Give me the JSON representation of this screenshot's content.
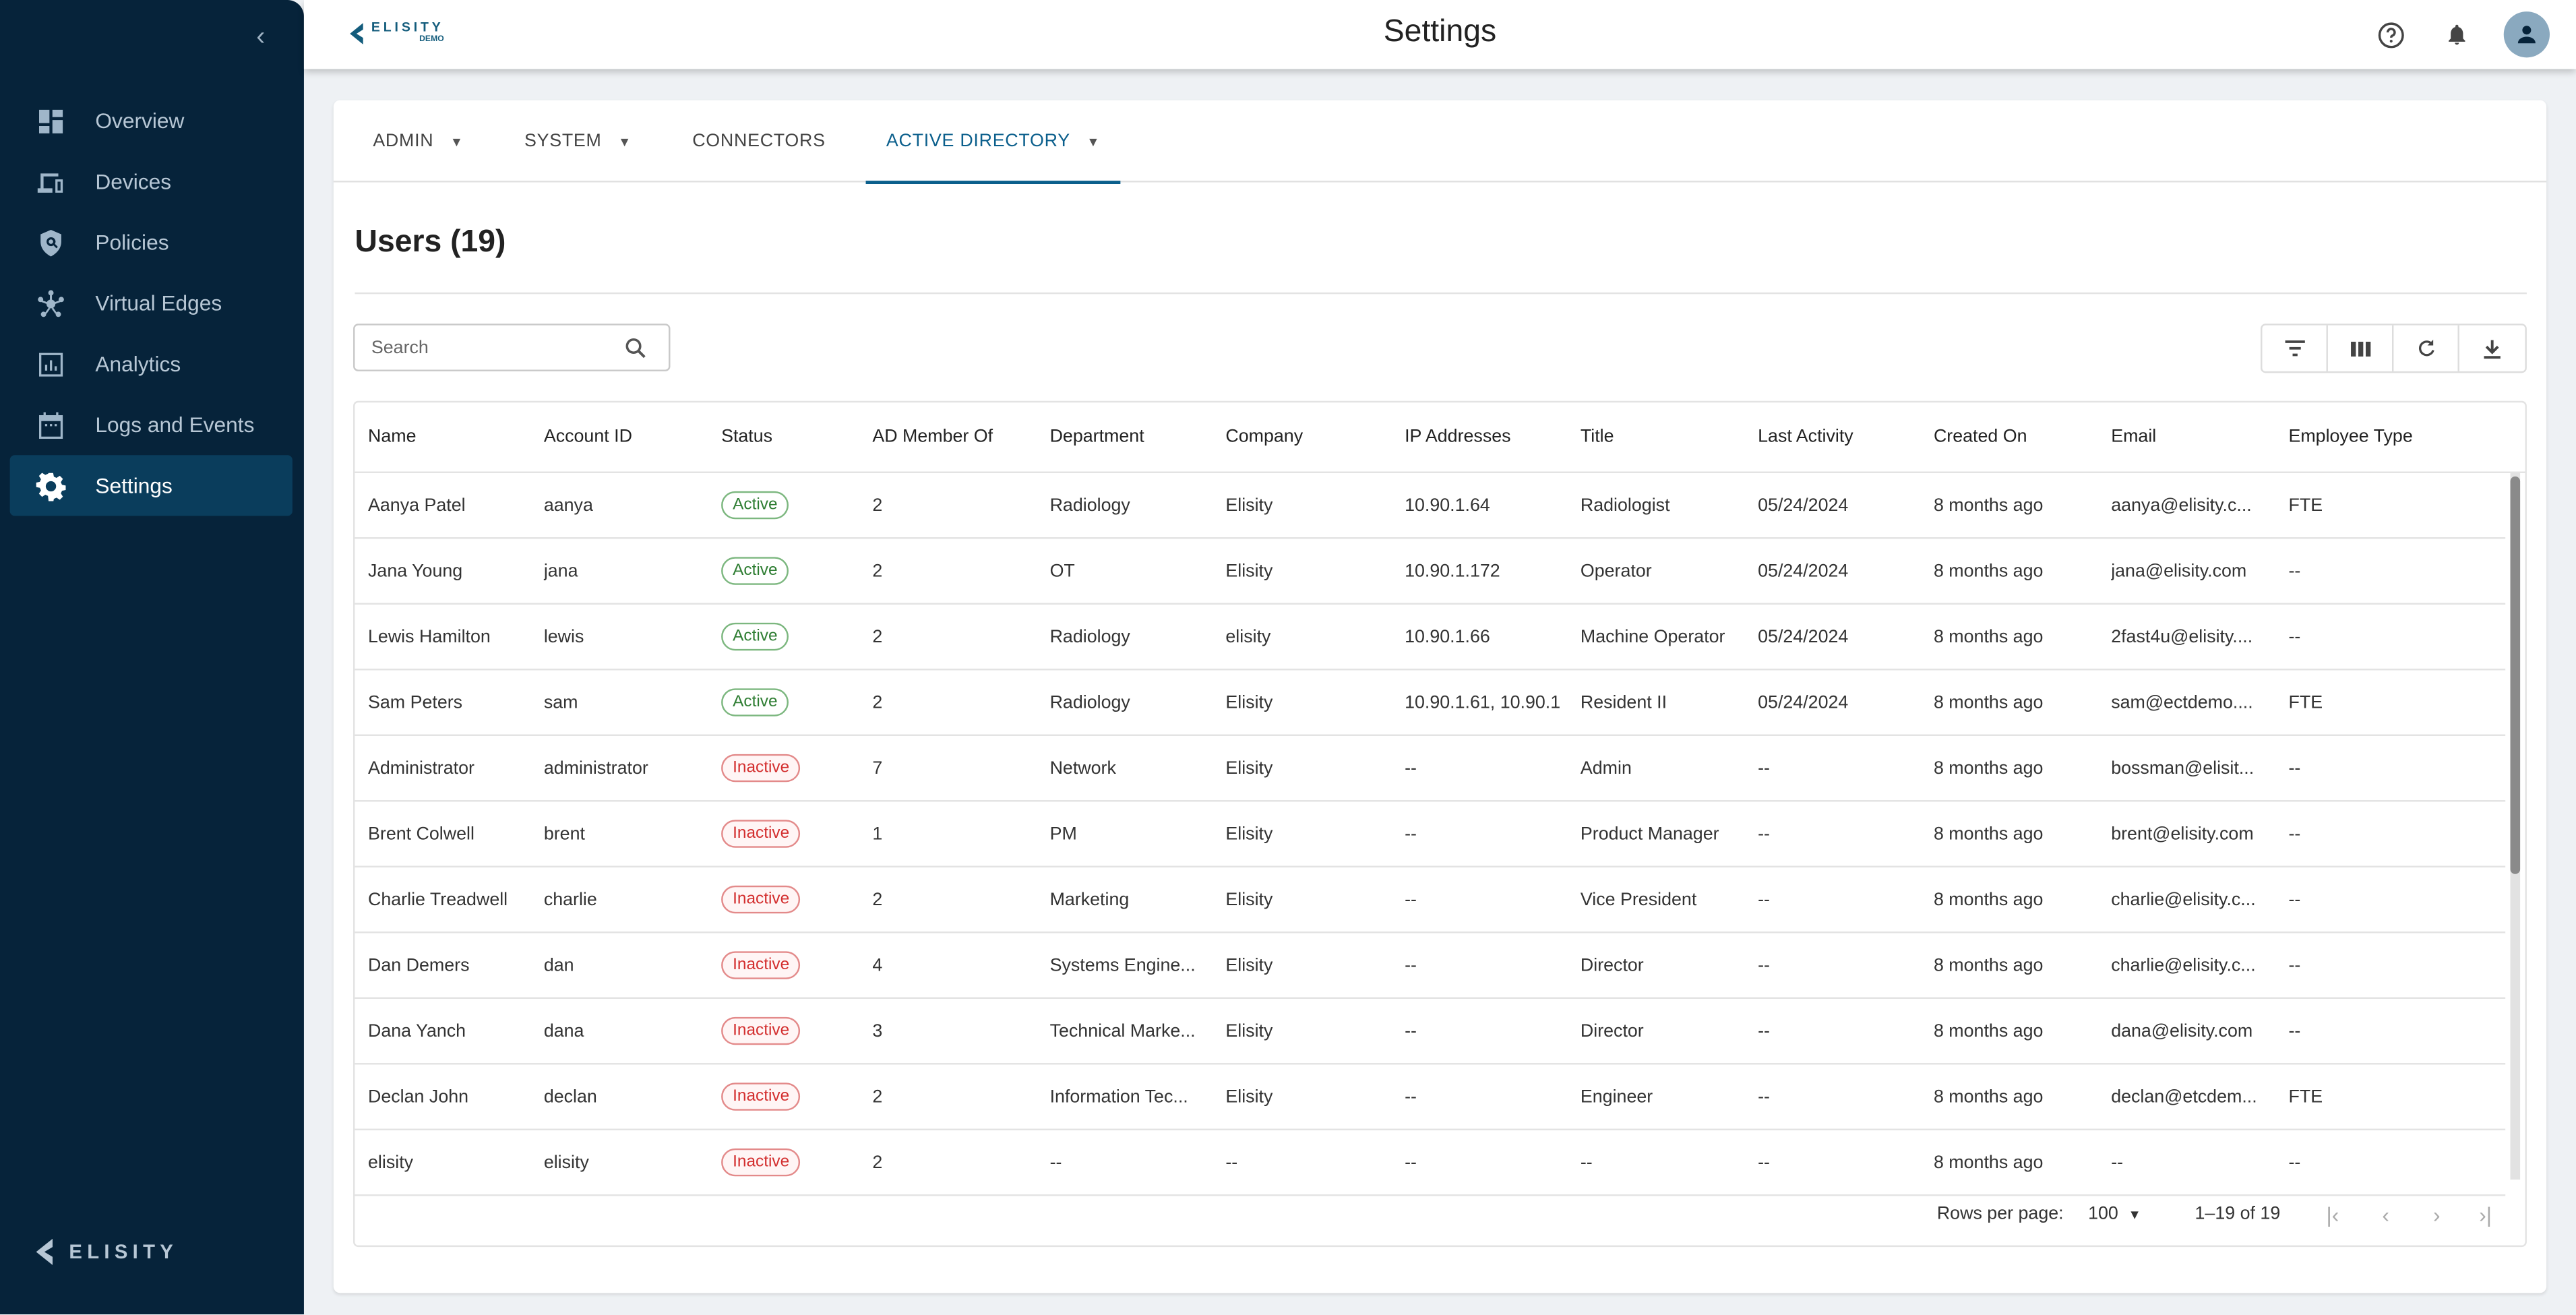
{
  "sidebar": {
    "items": [
      {
        "label": "Overview",
        "icon": "dashboard-icon"
      },
      {
        "label": "Devices",
        "icon": "devices-icon"
      },
      {
        "label": "Policies",
        "icon": "shield-icon"
      },
      {
        "label": "Virtual Edges",
        "icon": "hub-icon"
      },
      {
        "label": "Analytics",
        "icon": "analytics-icon"
      },
      {
        "label": "Logs and Events",
        "icon": "calendar-icon"
      },
      {
        "label": "Settings",
        "icon": "gear-icon",
        "active": true
      }
    ],
    "logo_text": "ELISITY"
  },
  "header": {
    "title": "Settings",
    "logo_text": "ELISITY",
    "logo_sub": "DEMO"
  },
  "tabs": [
    {
      "label": "ADMIN"
    },
    {
      "label": "SYSTEM"
    },
    {
      "label": "CONNECTORS"
    },
    {
      "label": "ACTIVE DIRECTORY",
      "active": true
    }
  ],
  "page": {
    "title": "Users (19)"
  },
  "search": {
    "placeholder": "Search",
    "value": ""
  },
  "table": {
    "columns": [
      "Name",
      "Account ID",
      "Status",
      "AD Member Of",
      "Department",
      "Company",
      "IP Addresses",
      "Title",
      "Last Activity",
      "Created On",
      "Email",
      "Employee Type"
    ],
    "rows": [
      [
        "Aanya Patel",
        "aanya",
        "Active",
        "2",
        "Radiology",
        "Elisity",
        "10.90.1.64",
        "Radiologist",
        "05/24/2024",
        "8 months ago",
        "aanya@elisity.c...",
        "FTE"
      ],
      [
        "Jana Young",
        "jana",
        "Active",
        "2",
        "OT",
        "Elisity",
        "10.90.1.172",
        "Operator",
        "05/24/2024",
        "8 months ago",
        "jana@elisity.com",
        "--"
      ],
      [
        "Lewis Hamilton",
        "lewis",
        "Active",
        "2",
        "Radiology",
        "elisity",
        "10.90.1.66",
        "Machine Operator",
        "05/24/2024",
        "8 months ago",
        "2fast4u@elisity....",
        "--"
      ],
      [
        "Sam Peters",
        "sam",
        "Active",
        "2",
        "Radiology",
        "Elisity",
        "10.90.1.61, 10.90.1",
        "Resident II",
        "05/24/2024",
        "8 months ago",
        "sam@ectdemo....",
        "FTE"
      ],
      [
        "Administrator",
        "administrator",
        "Inactive",
        "7",
        "Network",
        "Elisity",
        "--",
        "Admin",
        "--",
        "8 months ago",
        "bossman@elisit...",
        "--"
      ],
      [
        "Brent Colwell",
        "brent",
        "Inactive",
        "1",
        "PM",
        "Elisity",
        "--",
        "Product Manager",
        "--",
        "8 months ago",
        "brent@elisity.com",
        "--"
      ],
      [
        "Charlie Treadwell",
        "charlie",
        "Inactive",
        "2",
        "Marketing",
        "Elisity",
        "--",
        "Vice President",
        "--",
        "8 months ago",
        "charlie@elisity.c...",
        "--"
      ],
      [
        "Dan Demers",
        "dan",
        "Inactive",
        "4",
        "Systems Engine...",
        "Elisity",
        "--",
        "Director",
        "--",
        "8 months ago",
        "charlie@elisity.c...",
        "--"
      ],
      [
        "Dana Yanch",
        "dana",
        "Inactive",
        "3",
        "Technical Marke...",
        "Elisity",
        "--",
        "Director",
        "--",
        "8 months ago",
        "dana@elisity.com",
        "--"
      ],
      [
        "Declan John",
        "declan",
        "Inactive",
        "2",
        "Information Tec...",
        "Elisity",
        "--",
        "Engineer",
        "--",
        "8 months ago",
        "declan@etcdem...",
        "FTE"
      ],
      [
        "elisity",
        "elisity",
        "Inactive",
        "2",
        "--",
        "--",
        "--",
        "--",
        "--",
        "8 months ago",
        "--",
        "--"
      ]
    ]
  },
  "pagination": {
    "rows_per_page_label": "Rows per page:",
    "rows_per_page": "100",
    "range": "1–19 of 19"
  },
  "colors": {
    "sidebar": "#06233a",
    "accent": "#0b5f8c",
    "active": "#2e7d32",
    "inactive": "#d32f2f"
  }
}
